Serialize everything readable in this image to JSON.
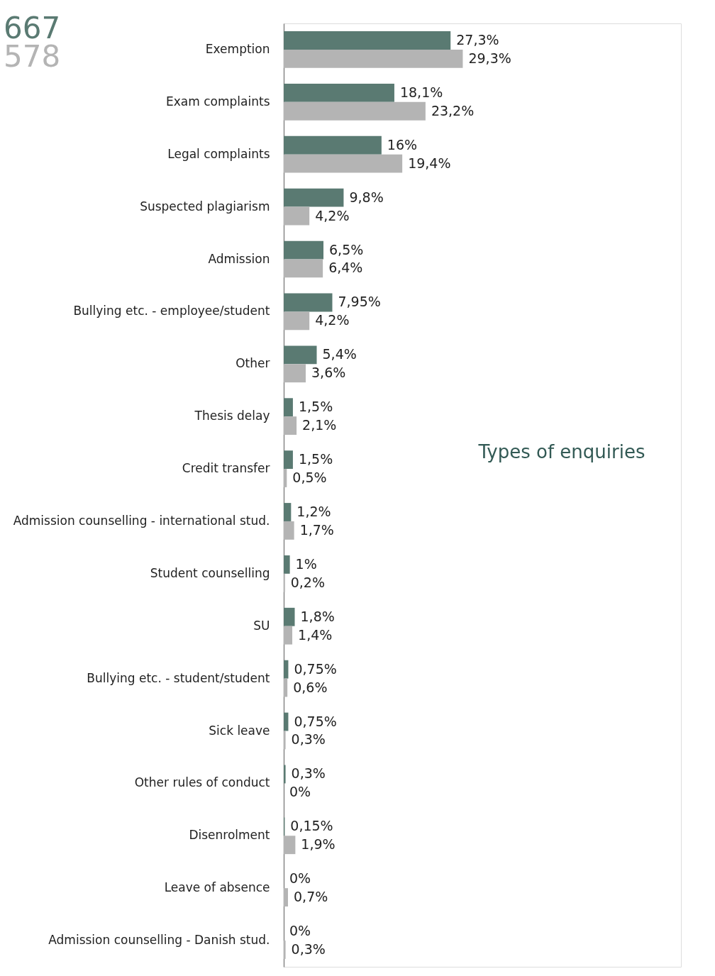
{
  "chart_data": {
    "type": "bar",
    "orientation": "horizontal",
    "title": "Types of enquiries",
    "categories": [
      "Exemption",
      "Exam complaints",
      "Legal complaints",
      "Suspected plagiarism",
      "Admission",
      "Bullying etc. - employee/student",
      "Other",
      "Thesis delay",
      "Credit transfer",
      "Admission counselling - international stud.",
      "Student counselling",
      "SU",
      "Bullying etc. - student/student",
      "Sick leave",
      "Other rules of conduct",
      "Disenrolment",
      "Leave of absence",
      "Admission counselling - Danish stud."
    ],
    "series": [
      {
        "name": "667",
        "color": "#5a7a72",
        "values": [
          27.3,
          18.1,
          16,
          9.8,
          6.5,
          7.95,
          5.4,
          1.5,
          1.5,
          1.2,
          1,
          1.8,
          0.75,
          0.75,
          0.3,
          0.15,
          0,
          0
        ],
        "value_labels": [
          "27,3%",
          "18,1%",
          "16%",
          "9,8%",
          "6,5%",
          "7,95%",
          "5,4%",
          "1,5%",
          "1,5%",
          "1,2%",
          "1%",
          "1,8%",
          "0,75%",
          "0,75%",
          "0,3%",
          "0,15%",
          "0%",
          "0%"
        ]
      },
      {
        "name": "578",
        "color": "#b4b4b4",
        "values": [
          29.3,
          23.2,
          19.4,
          4.2,
          6.4,
          4.2,
          3.6,
          2.1,
          0.5,
          1.7,
          0.2,
          1.4,
          0.6,
          0.3,
          0,
          1.9,
          0.7,
          0.3
        ],
        "value_labels": [
          "29,3%",
          "23,2%",
          "19,4%",
          "4,2%",
          "6,4%",
          "4,2%",
          "3,6%",
          "2,1%",
          "0,5%",
          "1,7%",
          "0,2%",
          "1,4%",
          "0,6%",
          "0,3%",
          "0%",
          "1,9%",
          "0,7%",
          "0,3%"
        ]
      }
    ],
    "xlim": [
      0,
      65
    ],
    "tick_labels": "y",
    "legend": "top left",
    "grid": false
  }
}
